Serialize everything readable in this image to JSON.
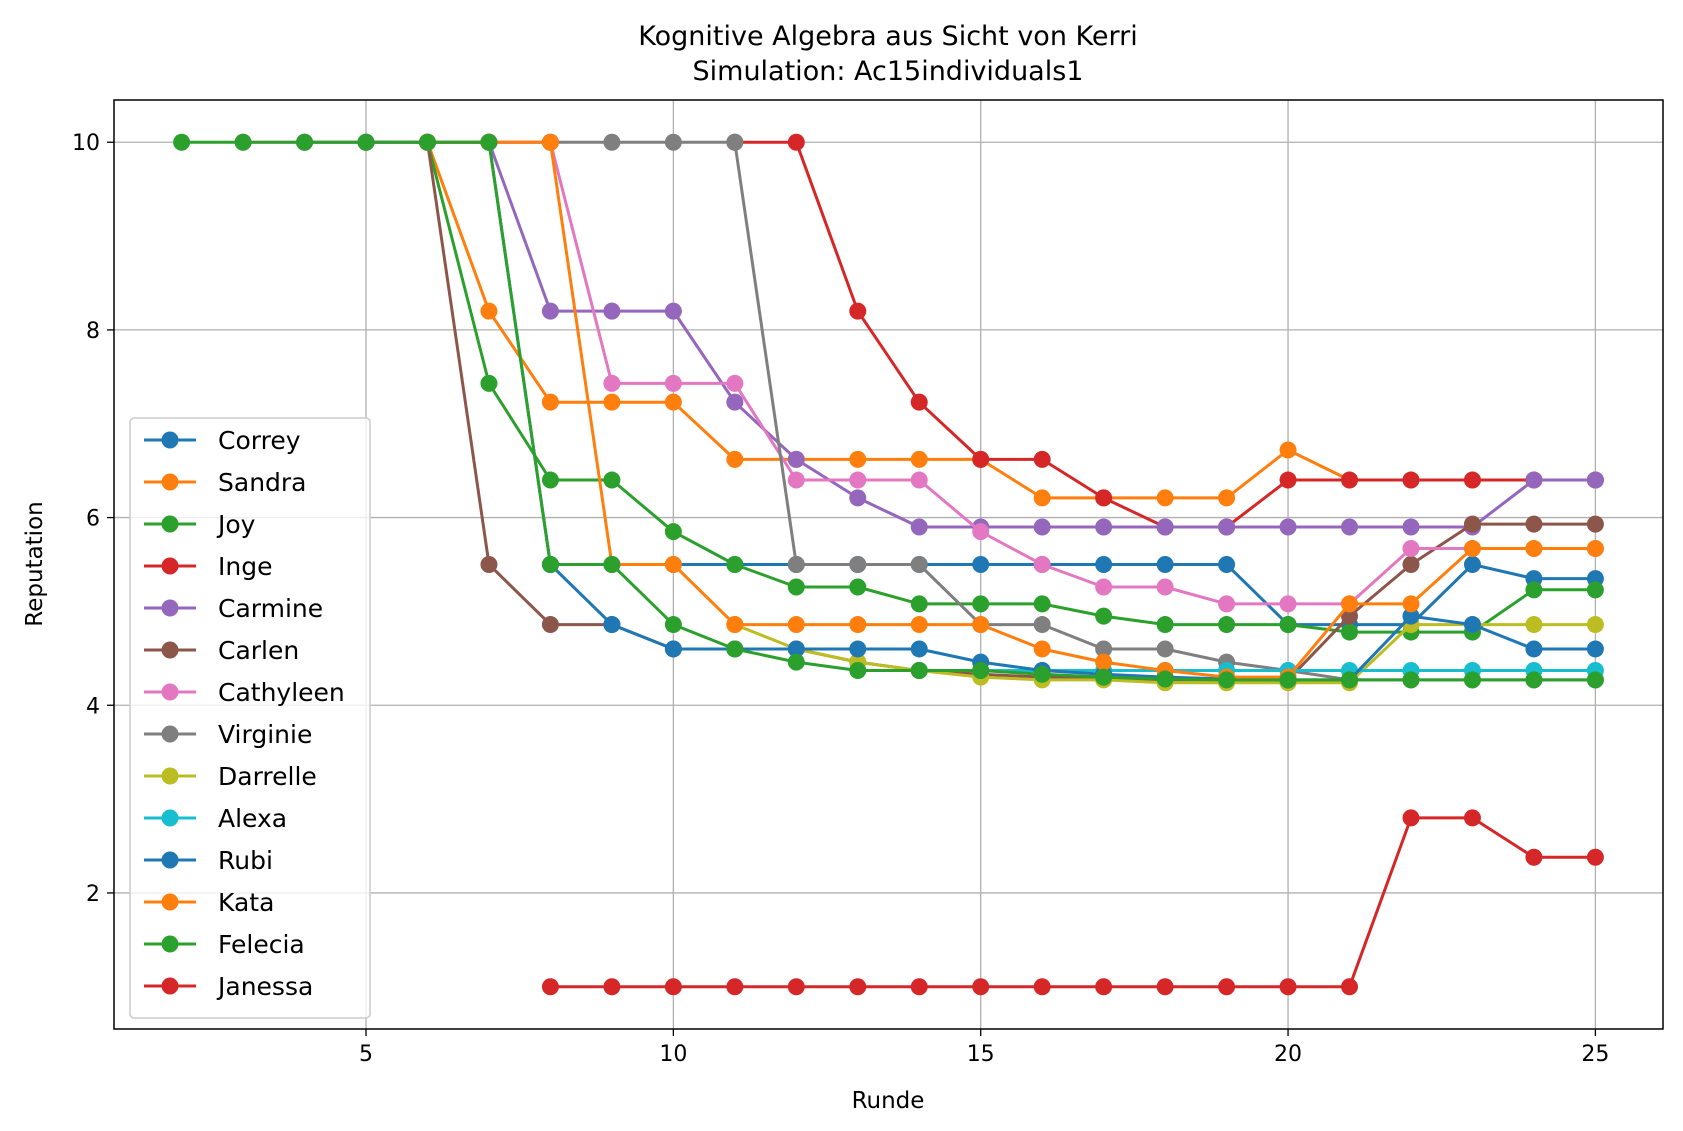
{
  "chart_data": {
    "type": "line",
    "title": "Kognitive Algebra aus Sicht von Kerri",
    "subtitle": "Simulation: Ac15individuals1",
    "xlabel": "Runde",
    "ylabel": "Reputation",
    "xlim": [
      0.9,
      26.1
    ],
    "ylim": [
      0.55,
      10.45
    ],
    "xticks": [
      5,
      10,
      15,
      20,
      25
    ],
    "yticks": [
      2,
      4,
      6,
      8,
      10
    ],
    "grid": true,
    "legend": "lower-left",
    "series": [
      {
        "name": "Correy",
        "color": "#1f77b4",
        "x": [
          5,
          6,
          7,
          8,
          9,
          10,
          11,
          12,
          13,
          14,
          15,
          16,
          17,
          18,
          19,
          20,
          21,
          22,
          23,
          24,
          25
        ],
        "y": [
          10,
          10,
          10,
          5.5,
          5.5,
          5.5,
          5.5,
          5.5,
          5.5,
          5.5,
          5.5,
          5.5,
          5.5,
          5.5,
          5.5,
          4.86,
          4.86,
          4.86,
          5.5,
          5.35,
          5.35
        ]
      },
      {
        "name": "Sandra",
        "color": "#ff7f0e",
        "x": [
          6,
          7,
          8,
          9,
          10,
          11,
          12,
          13,
          14,
          15,
          16,
          17,
          18,
          19,
          20,
          21,
          22,
          23,
          24,
          25
        ],
        "y": [
          10,
          8.2,
          7.23,
          7.23,
          7.23,
          6.62,
          6.62,
          6.62,
          6.62,
          6.62,
          6.21,
          6.21,
          6.21,
          6.21,
          6.72,
          6.4,
          6.4,
          6.4,
          6.4,
          6.4
        ]
      },
      {
        "name": "Joy",
        "color": "#2ca02c",
        "x": [
          6,
          7,
          8,
          9,
          10,
          11,
          12,
          13,
          14,
          15,
          16,
          17,
          18,
          19,
          20,
          21,
          22,
          23,
          24,
          25
        ],
        "y": [
          10,
          7.43,
          6.4,
          6.4,
          5.85,
          5.5,
          5.26,
          5.26,
          5.08,
          5.08,
          5.08,
          4.95,
          4.86,
          4.86,
          4.86,
          4.78,
          4.78,
          4.78,
          5.23,
          5.23
        ]
      },
      {
        "name": "Inge",
        "color": "#d62728",
        "x": [
          11,
          12,
          13,
          14,
          15,
          16,
          17,
          18,
          19,
          20,
          21,
          22,
          23,
          24,
          25
        ],
        "y": [
          10,
          10,
          8.2,
          7.23,
          6.62,
          6.62,
          6.21,
          5.9,
          5.9,
          6.4,
          6.4,
          6.4,
          6.4,
          6.4,
          6.4
        ]
      },
      {
        "name": "Carmine",
        "color": "#9467bd",
        "x": [
          7,
          8,
          9,
          10,
          11,
          12,
          13,
          14,
          15,
          16,
          17,
          18,
          19,
          20,
          21,
          22,
          23,
          24,
          25
        ],
        "y": [
          10,
          8.2,
          8.2,
          8.2,
          7.23,
          6.62,
          6.21,
          5.9,
          5.9,
          5.9,
          5.9,
          5.9,
          5.9,
          5.9,
          5.9,
          5.9,
          5.9,
          6.4,
          6.4
        ]
      },
      {
        "name": "Carlen",
        "color": "#8c564b",
        "x": [
          6,
          7,
          8,
          9,
          10,
          11,
          12,
          13,
          14,
          15,
          16,
          17,
          18,
          19,
          20,
          21,
          22,
          23,
          24,
          25
        ],
        "y": [
          10,
          5.5,
          4.86,
          4.86,
          4.6,
          4.6,
          4.6,
          4.46,
          4.37,
          4.33,
          4.3,
          4.28,
          4.27,
          4.27,
          4.27,
          4.95,
          5.5,
          5.93,
          5.93,
          5.93
        ]
      },
      {
        "name": "Cathyleen",
        "color": "#e377c2",
        "x": [
          3,
          4,
          5,
          6,
          7,
          8,
          9,
          10,
          11,
          12,
          13,
          14,
          15,
          16,
          17,
          18,
          19,
          20,
          21,
          22,
          23,
          24,
          25
        ],
        "y": [
          10,
          10,
          10,
          10,
          10,
          10,
          7.43,
          7.43,
          7.43,
          6.4,
          6.4,
          6.4,
          5.85,
          5.5,
          5.26,
          5.26,
          5.08,
          5.08,
          5.08,
          5.67,
          5.67,
          5.67,
          5.67
        ]
      },
      {
        "name": "Virginie",
        "color": "#7f7f7f",
        "x": [
          4,
          5,
          6,
          7,
          8,
          9,
          10,
          11,
          12,
          13,
          14,
          15,
          16,
          17,
          18,
          19,
          20,
          21,
          22,
          23,
          24,
          25
        ],
        "y": [
          10,
          10,
          10,
          10,
          10,
          10,
          10,
          10,
          5.5,
          5.5,
          5.5,
          4.86,
          4.86,
          4.6,
          4.6,
          4.46,
          4.37,
          4.27,
          4.27,
          4.27,
          4.27,
          4.27
        ]
      },
      {
        "name": "Darrelle",
        "color": "#bcbd22",
        "x": [
          11,
          12,
          13,
          14,
          15,
          16,
          17,
          18,
          19,
          20,
          21,
          22,
          23,
          24,
          25
        ],
        "y": [
          4.86,
          4.6,
          4.46,
          4.37,
          4.3,
          4.27,
          4.27,
          4.24,
          4.24,
          4.24,
          4.24,
          4.86,
          4.86,
          4.86,
          4.86
        ]
      },
      {
        "name": "Alexa",
        "color": "#17becf",
        "x": [
          14,
          15,
          16,
          17,
          18,
          19,
          20,
          21,
          22,
          23,
          24,
          25
        ],
        "y": [
          4.37,
          4.37,
          4.37,
          4.37,
          4.37,
          4.37,
          4.37,
          4.37,
          4.37,
          4.37,
          4.37,
          4.37
        ]
      },
      {
        "name": "Rubi",
        "color": "#1f77b4",
        "x": [
          8,
          9,
          10,
          11,
          12,
          13,
          14,
          15,
          16,
          17,
          18,
          19,
          20,
          21,
          22,
          23,
          24,
          25
        ],
        "y": [
          5.5,
          4.86,
          4.6,
          4.6,
          4.6,
          4.6,
          4.6,
          4.46,
          4.37,
          4.33,
          4.3,
          4.28,
          4.27,
          4.27,
          4.95,
          4.86,
          4.6,
          4.6
        ]
      },
      {
        "name": "Kata",
        "color": "#ff7f0e",
        "x": [
          6,
          7,
          8,
          9,
          10,
          11,
          12,
          13,
          14,
          15,
          16,
          17,
          18,
          19,
          20,
          21,
          22,
          23,
          24,
          25
        ],
        "y": [
          10,
          10,
          10,
          5.5,
          5.5,
          4.86,
          4.86,
          4.86,
          4.86,
          4.86,
          4.6,
          4.46,
          4.37,
          4.3,
          4.3,
          5.08,
          5.08,
          5.67,
          5.67,
          5.67
        ]
      },
      {
        "name": "Felecia",
        "color": "#2ca02c",
        "x": [
          2,
          3,
          4,
          5,
          6,
          7,
          8,
          9,
          10,
          11,
          12,
          13,
          14,
          15,
          16,
          17,
          18,
          19,
          20,
          21,
          22,
          23,
          24,
          25
        ],
        "y": [
          10,
          10,
          10,
          10,
          10,
          10,
          5.5,
          5.5,
          4.86,
          4.6,
          4.46,
          4.37,
          4.37,
          4.37,
          4.33,
          4.3,
          4.28,
          4.27,
          4.27,
          4.27,
          4.27,
          4.27,
          4.27,
          4.27
        ]
      },
      {
        "name": "Janessa",
        "color": "#d62728",
        "x": [
          8,
          9,
          10,
          11,
          12,
          13,
          14,
          15,
          16,
          17,
          18,
          19,
          20,
          21,
          22,
          23,
          24,
          25
        ],
        "y": [
          1,
          1,
          1,
          1,
          1,
          1,
          1,
          1,
          1,
          1,
          1,
          1,
          1,
          1,
          2.8,
          2.8,
          2.38,
          2.38
        ]
      }
    ]
  }
}
